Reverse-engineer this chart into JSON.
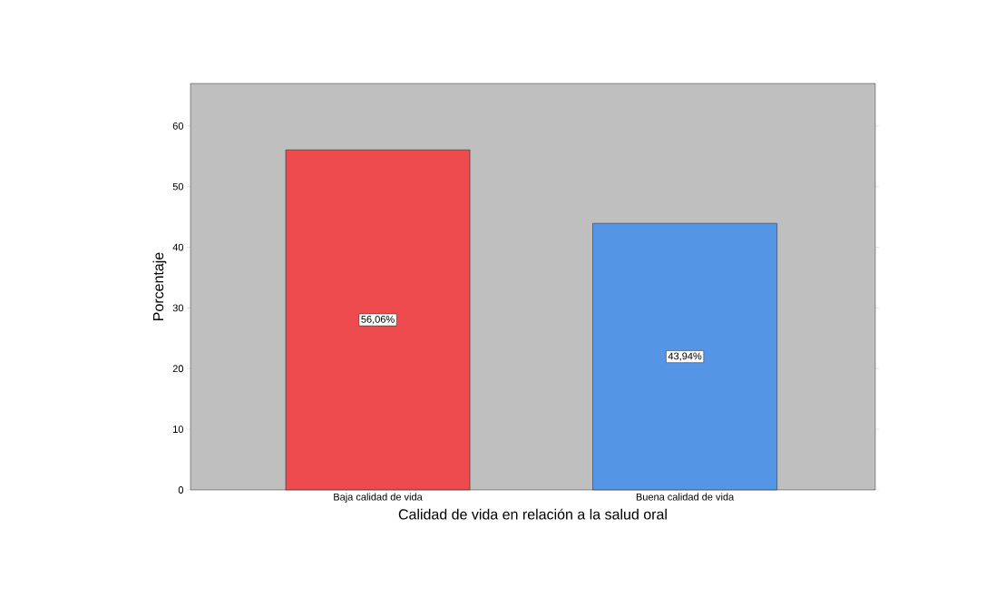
{
  "chart_data": {
    "type": "bar",
    "xlabel": "Calidad de vida en relación a la salud oral",
    "ylabel": "Porcentaje",
    "categories": [
      "Baja calidad de vida",
      "Buena calidad de vida"
    ],
    "values": [
      56.06,
      43.94
    ],
    "colors": [
      "#ec4a4c",
      "#5595e5"
    ],
    "value_labels": [
      "56,06%",
      "43,94%"
    ],
    "ylim": [
      0,
      67
    ],
    "yticks": [
      0,
      10,
      20,
      30,
      40,
      50,
      60
    ]
  }
}
